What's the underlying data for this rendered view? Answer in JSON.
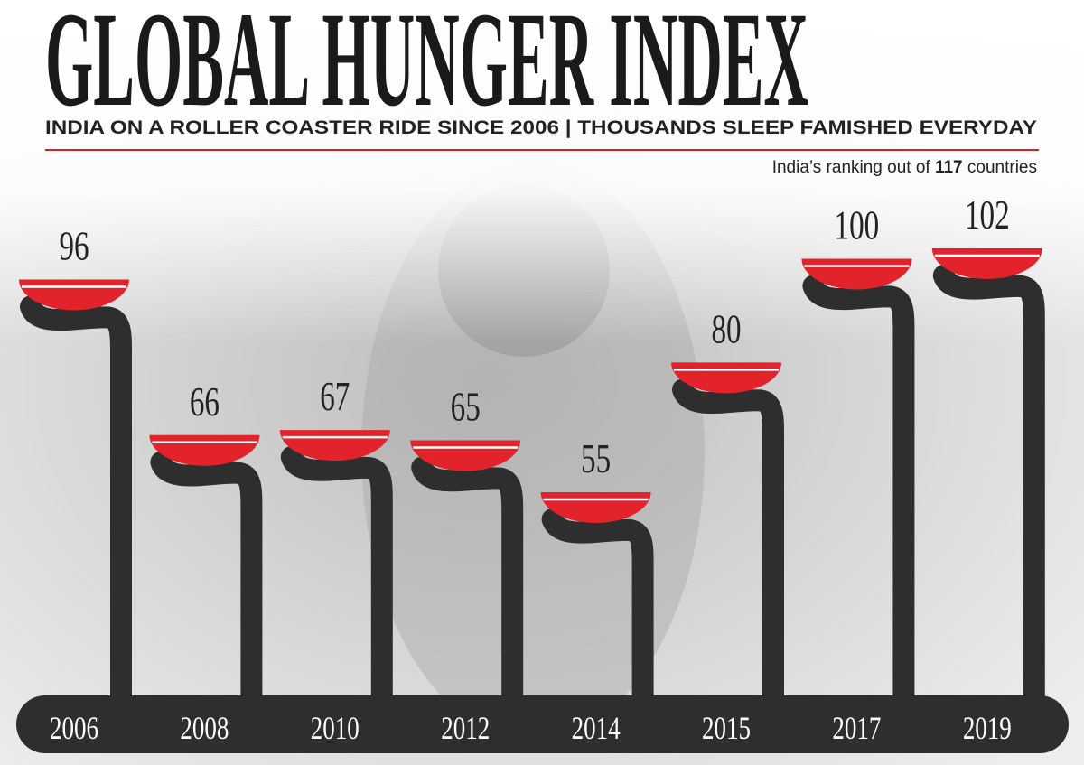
{
  "chart_data": {
    "type": "bowl",
    "title": "GLOBAL HUNGER INDEX",
    "subtitle": "INDIA ON A ROLLER COASTER RIDE SINCE 2006 |  THOUSANDS SLEEP FAMISHED EVERYDAY",
    "note": [
      "India’s ranking out of ",
      "117",
      " countries"
    ],
    "categories": [
      "2006",
      "2008",
      "2010",
      "2012",
      "2014",
      "2015",
      "2017",
      "2019"
    ],
    "values": [
      96,
      66,
      67,
      65,
      55,
      80,
      100,
      102
    ],
    "color": "#e3232c"
  }
}
